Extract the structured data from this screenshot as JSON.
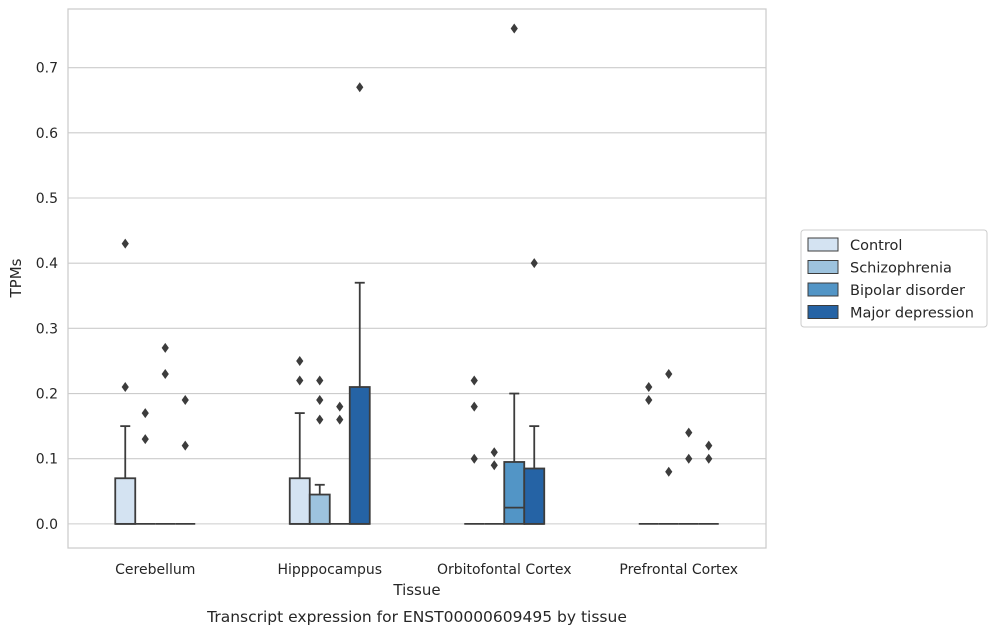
{
  "caption": "Transcript expression for ENST00000609495 by tissue",
  "chart_data": {
    "type": "box",
    "xlabel": "Tissue",
    "ylabel": "TPMs",
    "ylim": [
      -0.037,
      0.79
    ],
    "yticks": [
      0.0,
      0.1,
      0.2,
      0.3,
      0.4,
      0.5,
      0.6,
      0.7
    ],
    "ytick_labels": [
      "0.0",
      "0.1",
      "0.2",
      "0.3",
      "0.4",
      "0.5",
      "0.6",
      "0.7"
    ],
    "grid": true,
    "legend_position": "right",
    "categories": [
      "Cerebellum",
      "Hipppocampus",
      "Orbitofontal Cortex",
      "Prefrontal Cortex"
    ],
    "series": [
      {
        "name": "Control",
        "color": "#d4e3f2",
        "boxes": [
          {
            "q1": 0.0,
            "median": 0.0,
            "q3": 0.07,
            "whislo": 0.0,
            "whishi": 0.15,
            "fliers": [
              0.43,
              0.21
            ]
          },
          {
            "q1": 0.0,
            "median": 0.0,
            "q3": 0.07,
            "whislo": 0.0,
            "whishi": 0.17,
            "fliers": [
              0.25,
              0.22
            ]
          },
          {
            "q1": 0.0,
            "median": 0.0,
            "q3": 0.0,
            "whislo": 0.0,
            "whishi": 0.0,
            "fliers": [
              0.22,
              0.18,
              0.1
            ]
          },
          {
            "q1": 0.0,
            "median": 0.0,
            "q3": 0.0,
            "whislo": 0.0,
            "whishi": 0.0,
            "fliers": [
              0.21,
              0.19
            ]
          }
        ]
      },
      {
        "name": "Schizophrenia",
        "color": "#9dc3de",
        "boxes": [
          {
            "q1": 0.0,
            "median": 0.0,
            "q3": 0.0,
            "whislo": 0.0,
            "whishi": 0.0,
            "fliers": [
              0.17,
              0.13
            ]
          },
          {
            "q1": 0.0,
            "median": 0.0,
            "q3": 0.045,
            "whislo": 0.0,
            "whishi": 0.06,
            "fliers": [
              0.22,
              0.19,
              0.16
            ]
          },
          {
            "q1": 0.0,
            "median": 0.0,
            "q3": 0.0,
            "whislo": 0.0,
            "whishi": 0.0,
            "fliers": [
              0.11,
              0.09
            ]
          },
          {
            "q1": 0.0,
            "median": 0.0,
            "q3": 0.0,
            "whislo": 0.0,
            "whishi": 0.0,
            "fliers": [
              0.23,
              0.08
            ]
          }
        ]
      },
      {
        "name": "Bipolar disorder",
        "color": "#5295c6",
        "boxes": [
          {
            "q1": 0.0,
            "median": 0.0,
            "q3": 0.0,
            "whislo": 0.0,
            "whishi": 0.0,
            "fliers": [
              0.27,
              0.23
            ]
          },
          {
            "q1": 0.0,
            "median": 0.0,
            "q3": 0.0,
            "whislo": 0.0,
            "whishi": 0.0,
            "fliers": [
              0.18,
              0.16
            ]
          },
          {
            "q1": 0.0,
            "median": 0.025,
            "q3": 0.095,
            "whislo": 0.0,
            "whishi": 0.2,
            "fliers": [
              0.76
            ]
          },
          {
            "q1": 0.0,
            "median": 0.0,
            "q3": 0.0,
            "whislo": 0.0,
            "whishi": 0.0,
            "fliers": [
              0.14,
              0.1
            ]
          }
        ]
      },
      {
        "name": "Major depression",
        "color": "#2563a5",
        "boxes": [
          {
            "q1": 0.0,
            "median": 0.0,
            "q3": 0.0,
            "whislo": 0.0,
            "whishi": 0.0,
            "fliers": [
              0.19,
              0.12
            ]
          },
          {
            "q1": 0.0,
            "median": 0.0,
            "q3": 0.21,
            "whislo": 0.0,
            "whishi": 0.37,
            "fliers": [
              0.67
            ]
          },
          {
            "q1": 0.0,
            "median": 0.0,
            "q3": 0.085,
            "whislo": 0.0,
            "whishi": 0.15,
            "fliers": [
              0.4
            ]
          },
          {
            "q1": 0.0,
            "median": 0.0,
            "q3": 0.0,
            "whislo": 0.0,
            "whishi": 0.0,
            "fliers": [
              0.12,
              0.1
            ]
          }
        ]
      }
    ]
  }
}
